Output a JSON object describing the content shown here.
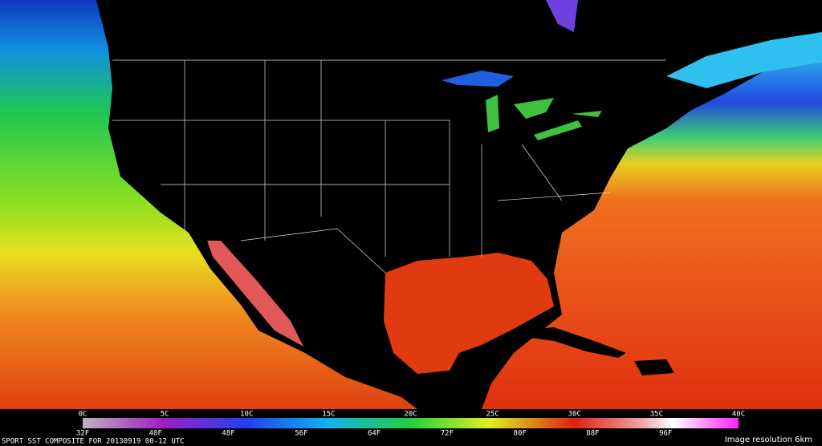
{
  "colorbar": {
    "celsius": [
      "0C",
      "5C",
      "10C",
      "15C",
      "20C",
      "25C",
      "30C",
      "35C",
      "40C"
    ],
    "fahrenheit": [
      "32F",
      "40F",
      "48F",
      "56F",
      "64F",
      "72F",
      "80F",
      "88F",
      "96F"
    ]
  },
  "footer": {
    "title": "SPORT SST COMPOSITE FOR 20130919 00-12 UTC",
    "resolution": "Image resolution 6km"
  }
}
